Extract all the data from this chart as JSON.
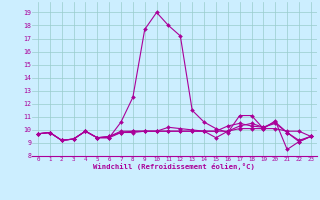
{
  "xlabel": "Windchill (Refroidissement éolien,°C)",
  "bg_color": "#cceeff",
  "grid_color": "#99cccc",
  "line_color": "#aa0099",
  "marker": "D",
  "xlim": [
    -0.5,
    23.5
  ],
  "ylim": [
    8.0,
    19.8
  ],
  "yticks": [
    8,
    9,
    10,
    11,
    12,
    13,
    14,
    15,
    16,
    17,
    18,
    19
  ],
  "xticks": [
    0,
    1,
    2,
    3,
    4,
    5,
    6,
    7,
    8,
    9,
    10,
    11,
    12,
    13,
    14,
    15,
    16,
    17,
    18,
    19,
    20,
    21,
    22,
    23
  ],
  "series": [
    [
      9.7,
      9.8,
      9.2,
      9.3,
      9.9,
      9.4,
      9.4,
      10.6,
      12.5,
      17.7,
      19.0,
      18.0,
      17.2,
      11.5,
      10.6,
      10.1,
      9.8,
      11.1,
      11.1,
      10.1,
      10.7,
      8.5,
      9.1,
      9.5
    ],
    [
      9.7,
      9.8,
      9.2,
      9.3,
      9.9,
      9.4,
      9.4,
      9.8,
      9.8,
      9.9,
      9.9,
      9.9,
      9.9,
      9.9,
      9.9,
      9.4,
      9.9,
      10.1,
      10.1,
      10.1,
      10.1,
      9.9,
      9.9,
      9.5
    ],
    [
      9.7,
      9.8,
      9.2,
      9.3,
      9.9,
      9.4,
      9.5,
      9.9,
      9.9,
      9.9,
      9.9,
      9.9,
      9.9,
      9.9,
      9.9,
      9.9,
      9.9,
      10.3,
      10.5,
      10.2,
      10.6,
      9.8,
      9.2,
      9.5
    ],
    [
      9.7,
      9.8,
      9.2,
      9.3,
      9.9,
      9.4,
      9.5,
      9.8,
      9.9,
      9.9,
      9.9,
      10.2,
      10.1,
      10.0,
      9.9,
      9.9,
      10.3,
      10.5,
      10.3,
      10.2,
      10.5,
      9.8,
      9.1,
      9.5
    ]
  ]
}
